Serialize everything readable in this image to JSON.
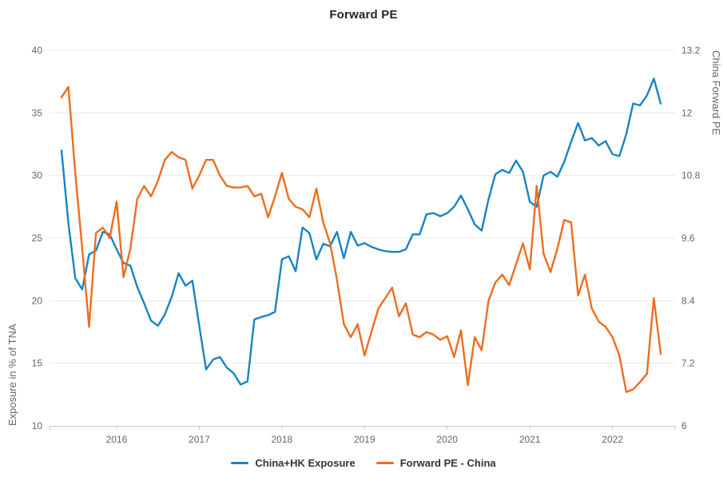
{
  "title": "Forward PE",
  "legend": [
    {
      "label": "China+HK Exposure",
      "color": "#1784c4"
    },
    {
      "label": "Forward PE - China",
      "color": "#ee6d1f"
    }
  ],
  "colors": {
    "title": "#20242a",
    "grid": "#e8e8e8",
    "axis_line": "#c8c8c8",
    "tick_label": "#666666",
    "axis_title": "#666666",
    "legend_text": "#333333",
    "series_blue": "#1784c4",
    "series_orange": "#ee6d1f"
  },
  "chart_data": {
    "type": "line",
    "title": "Forward PE",
    "xlabel": "",
    "grid": true,
    "legend_position": "bottom",
    "x_year_ticks": [
      "2016",
      "2017",
      "2018",
      "2019",
      "2020",
      "2021",
      "2022"
    ],
    "left_axis": {
      "title": "Exposure in % of TNA",
      "min": 10,
      "max": 40,
      "tick_labels": [
        "40",
        "35",
        "30",
        "25",
        "20",
        "15",
        "10"
      ],
      "tick_values": [
        40,
        35,
        30,
        25,
        20,
        15,
        10
      ]
    },
    "right_axis": {
      "title": "China Forward PE",
      "min": 6,
      "max": 13.2,
      "tick_labels": [
        "13.2",
        "12",
        "10.8",
        "9.6",
        "8.4",
        "7.2",
        "6"
      ],
      "tick_values": [
        13.2,
        12,
        10.8,
        9.6,
        8.4,
        7.2,
        6
      ]
    },
    "x": [
      "2015-05",
      "2015-06",
      "2015-07",
      "2015-08",
      "2015-09",
      "2015-10",
      "2015-11",
      "2015-12",
      "2016-01",
      "2016-02",
      "2016-03",
      "2016-04",
      "2016-05",
      "2016-06",
      "2016-07",
      "2016-08",
      "2016-09",
      "2016-10",
      "2016-11",
      "2016-12",
      "2017-01",
      "2017-02",
      "2017-03",
      "2017-04",
      "2017-05",
      "2017-06",
      "2017-07",
      "2017-08",
      "2017-09",
      "2017-10",
      "2017-11",
      "2017-12",
      "2018-01",
      "2018-02",
      "2018-03",
      "2018-04",
      "2018-05",
      "2018-06",
      "2018-07",
      "2018-08",
      "2018-09",
      "2018-10",
      "2018-11",
      "2018-12",
      "2019-01",
      "2019-02",
      "2019-03",
      "2019-04",
      "2019-05",
      "2019-06",
      "2019-07",
      "2019-08",
      "2019-09",
      "2019-10",
      "2019-11",
      "2019-12",
      "2020-01",
      "2020-02",
      "2020-03",
      "2020-04",
      "2020-05",
      "2020-06",
      "2020-07",
      "2020-08",
      "2020-09",
      "2020-10",
      "2020-11",
      "2020-12",
      "2021-01",
      "2021-02",
      "2021-03",
      "2021-04",
      "2021-05",
      "2021-06",
      "2021-07",
      "2021-08",
      "2021-09",
      "2021-10",
      "2021-11",
      "2021-12",
      "2022-01",
      "2022-02",
      "2022-03",
      "2022-04",
      "2022-05",
      "2022-06",
      "2022-07",
      "2022-08"
    ],
    "series": [
      {
        "name": "China+HK Exposure",
        "axis": "left",
        "color": "#1784c4",
        "values": [
          32.0,
          26.2,
          21.8,
          20.9,
          23.7,
          24.0,
          25.5,
          25.3,
          24.1,
          23.0,
          22.8,
          21.1,
          19.8,
          18.4,
          18.0,
          18.9,
          20.3,
          22.2,
          21.2,
          21.6,
          18.0,
          14.5,
          15.3,
          15.5,
          14.65,
          14.2,
          13.3,
          13.55,
          18.5,
          18.7,
          18.85,
          19.1,
          23.3,
          23.55,
          22.35,
          25.85,
          25.4,
          23.3,
          24.55,
          24.35,
          25.5,
          23.4,
          25.5,
          24.4,
          24.6,
          24.3,
          24.1,
          23.95,
          23.9,
          23.9,
          24.1,
          25.3,
          25.3,
          26.9,
          27.0,
          26.75,
          27.0,
          27.5,
          28.4,
          27.3,
          26.1,
          25.6,
          28.1,
          30.1,
          30.45,
          30.2,
          31.2,
          30.3,
          27.9,
          27.5,
          30.0,
          30.3,
          29.9,
          31.1,
          32.7,
          34.2,
          32.8,
          33.0,
          32.4,
          32.75,
          31.7,
          31.55,
          33.3,
          35.75,
          35.6,
          36.4,
          37.75,
          35.75
        ]
      },
      {
        "name": "Forward PE - China",
        "axis": "right",
        "color": "#ee6d1f",
        "values": [
          12.3,
          12.5,
          10.85,
          9.4,
          7.9,
          9.7,
          9.8,
          9.6,
          10.3,
          8.85,
          9.4,
          10.35,
          10.6,
          10.4,
          10.7,
          11.1,
          11.25,
          11.15,
          11.1,
          10.55,
          10.8,
          11.1,
          11.1,
          10.8,
          10.6,
          10.57,
          10.57,
          10.6,
          10.4,
          10.45,
          10.0,
          10.4,
          10.85,
          10.35,
          10.2,
          10.15,
          10.0,
          10.55,
          9.9,
          9.5,
          8.8,
          7.95,
          7.7,
          7.95,
          7.35,
          7.8,
          8.25,
          8.45,
          8.65,
          8.1,
          8.35,
          7.75,
          7.7,
          7.8,
          7.75,
          7.65,
          7.72,
          7.32,
          7.83,
          6.78,
          7.7,
          7.45,
          8.4,
          8.75,
          8.9,
          8.7,
          9.1,
          9.5,
          9.0,
          10.6,
          9.3,
          8.95,
          9.4,
          9.95,
          9.9,
          8.5,
          8.9,
          8.25,
          8.0,
          7.9,
          7.7,
          7.35,
          6.65,
          6.7,
          6.84,
          7.0,
          8.45,
          7.38
        ]
      }
    ]
  }
}
